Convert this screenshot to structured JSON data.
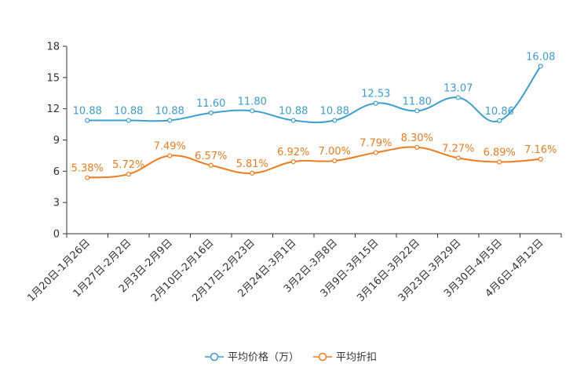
{
  "chart_data": {
    "type": "line",
    "categories": [
      "1月20日-1月26日",
      "1月27日-2月2日",
      "2月3日-2月9日",
      "2月10日-2月16日",
      "2月17日-2月23日",
      "2月24日-3月1日",
      "3月2日-3月8日",
      "3月9日-3月15日",
      "3月16日-3月22日",
      "3月23日-3月29日",
      "3月30日-4月5日",
      "4月6日-4月12日"
    ],
    "series": [
      {
        "name": "平均价格（万）",
        "color": "#3a9fd0",
        "values": [
          10.88,
          10.88,
          10.88,
          11.6,
          11.8,
          10.88,
          10.88,
          12.53,
          11.8,
          13.07,
          10.86,
          16.08
        ],
        "labels": [
          "10.88",
          "10.88",
          "10.88",
          "11.60",
          "11.80",
          "10.88",
          "10.88",
          "12.53",
          "11.80",
          "13.07",
          "10.86",
          "16.08"
        ]
      },
      {
        "name": "平均折扣",
        "color": "#f07c1c",
        "values": [
          5.38,
          5.72,
          7.49,
          6.57,
          5.81,
          6.92,
          7.0,
          7.79,
          8.3,
          7.27,
          6.89,
          7.16
        ],
        "labels": [
          "5.38%",
          "5.72%",
          "7.49%",
          "6.57%",
          "5.81%",
          "6.92%",
          "7.00%",
          "7.79%",
          "8.30%",
          "7.27%",
          "6.89%",
          "7.16%"
        ]
      }
    ],
    "yticks": [
      "0",
      "3",
      "6",
      "9",
      "12",
      "15",
      "18"
    ],
    "ylim": [
      0,
      18
    ],
    "title": "",
    "xlabel": "",
    "ylabel": "",
    "grid": false,
    "legend_position": "bottom-center"
  }
}
